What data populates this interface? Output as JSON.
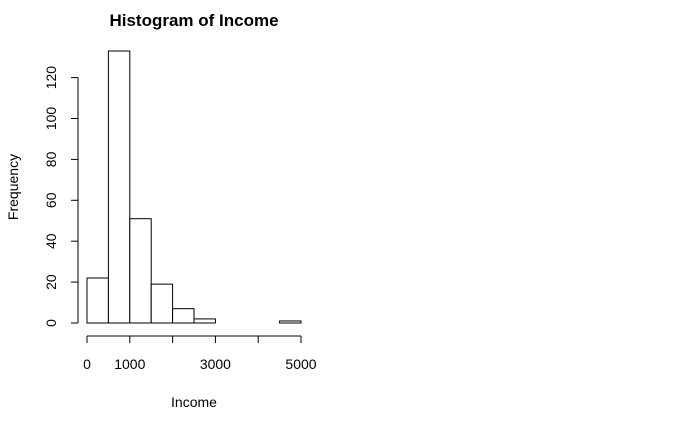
{
  "chart_data": {
    "type": "bar",
    "title": "Histogram of Income",
    "xlabel": "Income",
    "ylabel": "Frequency",
    "bins": [
      {
        "start": 0,
        "end": 500,
        "count": 22
      },
      {
        "start": 500,
        "end": 1000,
        "count": 133
      },
      {
        "start": 1000,
        "end": 1500,
        "count": 51
      },
      {
        "start": 1500,
        "end": 2000,
        "count": 19
      },
      {
        "start": 2000,
        "end": 2500,
        "count": 7
      },
      {
        "start": 2500,
        "end": 3000,
        "count": 2
      },
      {
        "start": 3000,
        "end": 3500,
        "count": 0
      },
      {
        "start": 3500,
        "end": 4000,
        "count": 0
      },
      {
        "start": 4000,
        "end": 4500,
        "count": 0
      },
      {
        "start": 4500,
        "end": 5000,
        "count": 1
      }
    ],
    "xlim": [
      0,
      5000
    ],
    "ylim": [
      0,
      133
    ],
    "x_ticks": [
      0,
      1000,
      2000,
      3000,
      4000,
      5000
    ],
    "x_tick_labels": [
      "0",
      "1000",
      "",
      "3000",
      "",
      "5000"
    ],
    "y_ticks": [
      0,
      20,
      40,
      60,
      80,
      100,
      120
    ],
    "y_tick_labels": [
      "0",
      "20",
      "40",
      "60",
      "80",
      "100",
      "120"
    ],
    "bar_fill": "#ffffff",
    "bar_stroke": "#000000",
    "grid": false,
    "legend": "none"
  }
}
